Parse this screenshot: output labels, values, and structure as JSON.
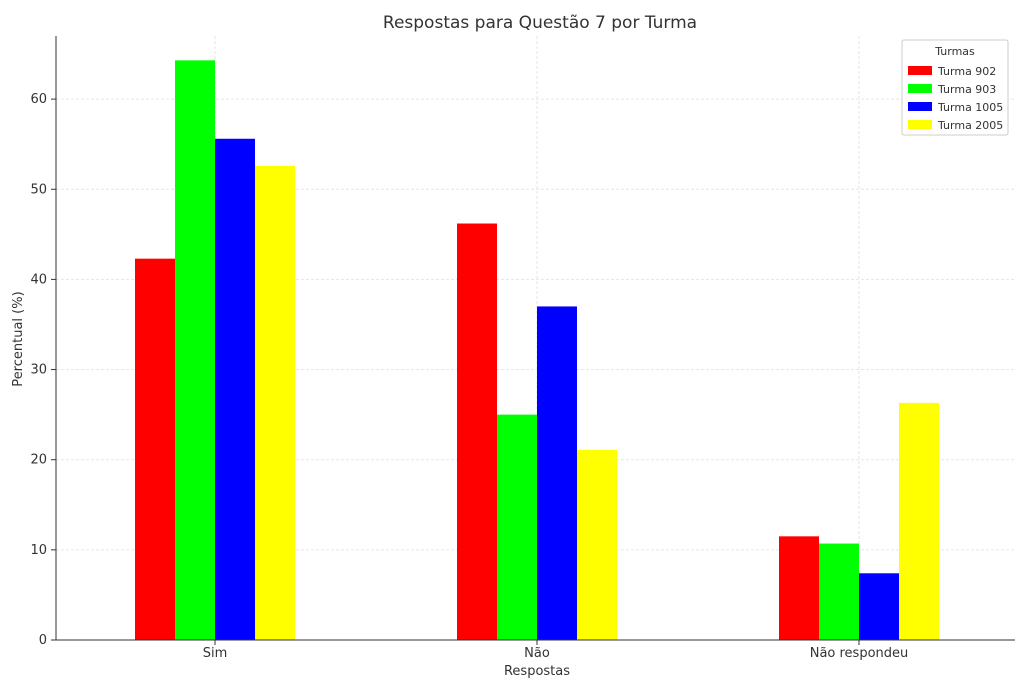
{
  "chart_data": {
    "type": "bar",
    "title": "Respostas para Questão 7 por Turma",
    "xlabel": "Respostas",
    "ylabel": "Percentual (%)",
    "categories": [
      "Sim",
      "Não",
      "Não respondeu"
    ],
    "ylim": [
      0,
      67
    ],
    "yticks": [
      0,
      10,
      20,
      30,
      40,
      50,
      60
    ],
    "grid": true,
    "legend": {
      "title": "Turmas",
      "placement": "top-right"
    },
    "series": [
      {
        "name": "Turma 902",
        "color": "#ff0000",
        "values": [
          42.3,
          46.2,
          11.5
        ]
      },
      {
        "name": "Turma 903",
        "color": "#00ff00",
        "values": [
          64.3,
          25.0,
          10.7
        ]
      },
      {
        "name": "Turma 1005",
        "color": "#0000ff",
        "values": [
          55.6,
          37.0,
          7.4
        ]
      },
      {
        "name": "Turma 2005",
        "color": "#ffff00",
        "values": [
          52.6,
          21.1,
          26.3
        ]
      }
    ]
  }
}
